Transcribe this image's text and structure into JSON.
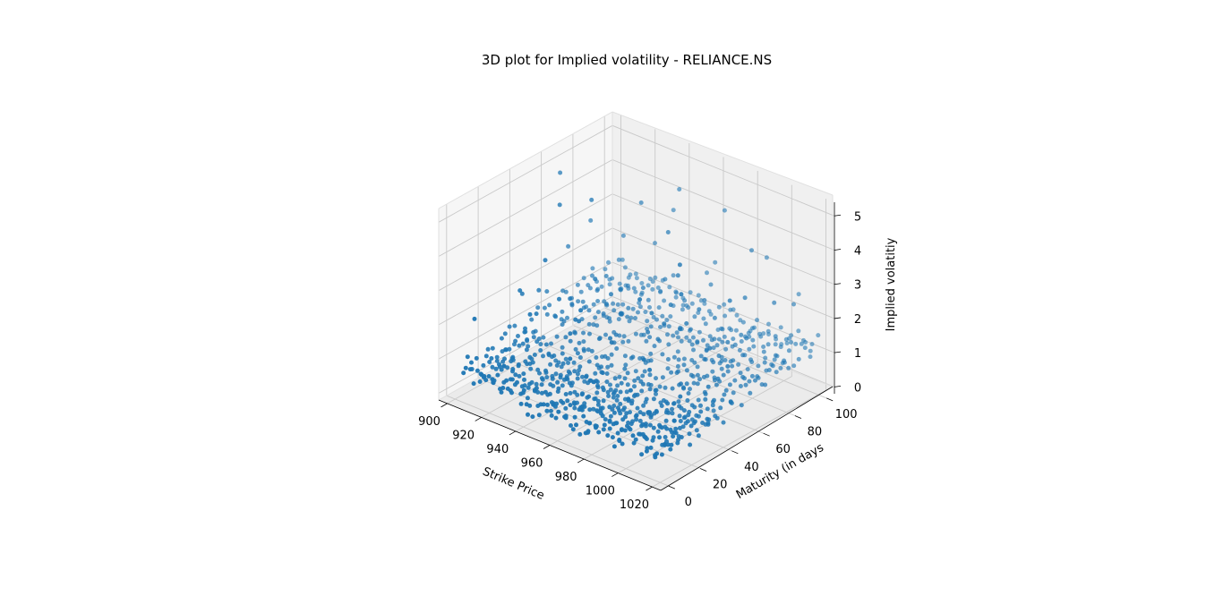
{
  "chart_data": {
    "type": "scatter",
    "title": "3D plot for Implied volatility - RELIANCE.NS",
    "xlabel": "Strike Price",
    "ylabel": "Maturity (in days",
    "zlabel": "Implied volatitiy",
    "xlim": [
      895,
      1025
    ],
    "ylim": [
      -5,
      105
    ],
    "zlim": [
      -0.2,
      5.4
    ],
    "xticks": [
      "900",
      "920",
      "940",
      "960",
      "980",
      "1000",
      "1020"
    ],
    "yticks": [
      "0",
      "20",
      "40",
      "60",
      "80",
      "100"
    ],
    "zticks": [
      "0",
      "1",
      "2",
      "3",
      "4",
      "5"
    ],
    "grid": true,
    "marker_color": "#1f77b4",
    "pane_color": "#f2f2f2",
    "series": [
      {
        "strikes": [
          900,
          902.5,
          905,
          907.5,
          910,
          912.5,
          915,
          917.5,
          920,
          922.5,
          925,
          927.5,
          930,
          932.5,
          935,
          937.5,
          940,
          942.5,
          945,
          947.5,
          950,
          952.5,
          955,
          957.5,
          960,
          962.5,
          965,
          967.5,
          970,
          972.5,
          975,
          977.5,
          980,
          982.5,
          985,
          987.5,
          990,
          992.5,
          995,
          997.5,
          1000,
          1002.5,
          1005,
          1007.5,
          1010,
          1012.5,
          1015,
          1017.5,
          1020
        ],
        "maturities": [
          4,
          8,
          11,
          15,
          18,
          22,
          25,
          29,
          32,
          36,
          39,
          46,
          53,
          60,
          67,
          74,
          81,
          88,
          95,
          100
        ],
        "base_iv": [
          0.3,
          0.3,
          0.35,
          0.35,
          0.4,
          0.4,
          0.45,
          0.45,
          0.5,
          0.5,
          0.55,
          0.6,
          0.65,
          0.7,
          0.75,
          0.8,
          0.85,
          0.9,
          0.95,
          1.0
        ],
        "outliers": [
          [
            906,
            60,
            5.0
          ],
          [
            929,
            55,
            4.8
          ],
          [
            948,
            90,
            4.6
          ],
          [
            990,
            45,
            4.4
          ],
          [
            970,
            95,
            4.3
          ],
          [
            915,
            50,
            4.5
          ],
          [
            1000,
            35,
            4.0
          ],
          [
            935,
            80,
            4.2
          ],
          [
            985,
            25,
            3.8
          ],
          [
            960,
            70,
            4.1
          ],
          [
            1010,
            55,
            3.5
          ],
          [
            925,
            30,
            3.6
          ],
          [
            945,
            40,
            3.2
          ],
          [
            995,
            85,
            3.9
          ],
          [
            975,
            60,
            3.4
          ],
          [
            910,
            75,
            3.3
          ],
          [
            955,
            20,
            3.0
          ],
          [
            1005,
            70,
            3.1
          ],
          [
            940,
            95,
            3.7
          ],
          [
            980,
            50,
            2.9
          ],
          [
            920,
            85,
            2.8
          ],
          [
            965,
            35,
            2.7
          ],
          [
            1015,
            90,
            2.6
          ],
          [
            930,
            15,
            2.5
          ],
          [
            990,
            100,
            3.2
          ],
          [
            950,
            65,
            2.4
          ],
          [
            1000,
            15,
            2.3
          ],
          [
            912,
            40,
            2.2
          ],
          [
            972,
            80,
            2.1
          ],
          [
            1018,
            45,
            2.0
          ]
        ]
      }
    ]
  }
}
